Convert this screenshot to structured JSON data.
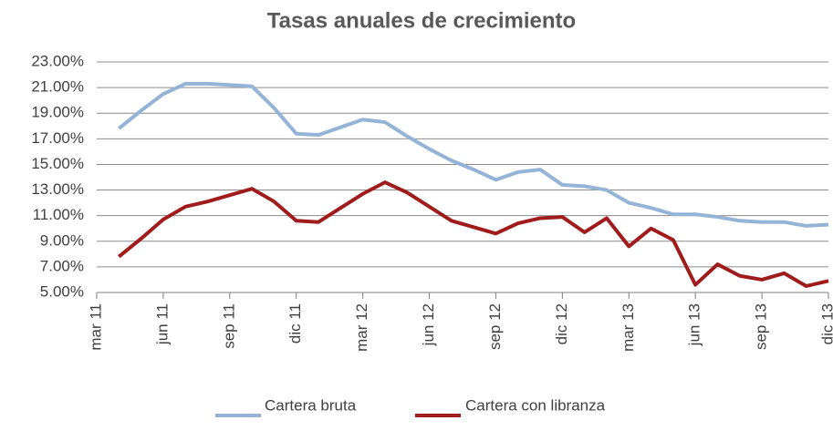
{
  "chart_data": {
    "type": "line",
    "title": "Tasas anuales de crecimiento",
    "categories": [
      "mar 11",
      null,
      null,
      "jun 11",
      null,
      null,
      "sep 11",
      null,
      null,
      "dic 11",
      null,
      null,
      "mar 12",
      null,
      null,
      "jun 12",
      null,
      null,
      "sep 12",
      null,
      null,
      "dic 12",
      null,
      null,
      "mar 13",
      null,
      null,
      "jun 13",
      null,
      null,
      "sep 13",
      null,
      null,
      "dic 13"
    ],
    "series": [
      {
        "name": "Cartera bruta",
        "color": "#95b3d7",
        "values": [
          null,
          17.8,
          19.2,
          20.5,
          21.3,
          21.3,
          21.2,
          21.1,
          19.4,
          17.4,
          17.3,
          17.9,
          18.5,
          18.3,
          17.2,
          16.2,
          15.3,
          14.6,
          13.8,
          14.4,
          14.6,
          13.4,
          13.3,
          13.0,
          12.0,
          11.6,
          11.1,
          11.1,
          10.9,
          10.6,
          10.5,
          10.5,
          10.2,
          10.3
        ]
      },
      {
        "name": "Cartera con libranza",
        "color": "#a01c1c",
        "values": [
          null,
          7.8,
          9.2,
          10.7,
          11.7,
          12.1,
          12.6,
          13.1,
          12.1,
          10.6,
          10.5,
          11.6,
          12.7,
          13.6,
          12.8,
          11.7,
          10.6,
          10.1,
          9.6,
          10.4,
          10.8,
          10.9,
          9.7,
          10.8,
          8.6,
          10.0,
          9.1,
          5.6,
          7.2,
          6.3,
          6.0,
          6.5,
          5.5,
          5.9
        ]
      }
    ],
    "ylim": [
      5,
      23
    ],
    "yticks": [
      {
        "value": 5,
        "label": "5.00%"
      },
      {
        "value": 7,
        "label": "7.00%"
      },
      {
        "value": 9,
        "label": "9.00%"
      },
      {
        "value": 11,
        "label": "11.00%"
      },
      {
        "value": 13,
        "label": "13.00%"
      },
      {
        "value": 15,
        "label": "15.00%"
      },
      {
        "value": 17,
        "label": "17.00%"
      },
      {
        "value": 19,
        "label": "19.00%"
      },
      {
        "value": 21,
        "label": "21.00%"
      },
      {
        "value": 23,
        "label": "23.00%"
      }
    ],
    "grid": true,
    "legend": "bottom"
  }
}
